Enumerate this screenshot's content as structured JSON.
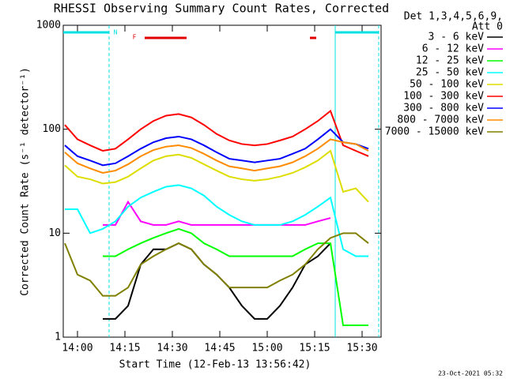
{
  "chart_data": {
    "type": "line",
    "title": "RHESSI Observing Summary Count Rates, Corrected",
    "xlabel": "Start Time (12-Feb-13 13:56:42)",
    "ylabel": "Corrected Count Rate (s⁻¹ detector⁻¹)",
    "legend_header": [
      "Det 1,3,4,5,6,9,",
      "Att 0"
    ],
    "footer": "23-Oct-2021 05:32",
    "log_y": true,
    "xlim": [
      -4.5,
      96
    ],
    "ylim": [
      1,
      1000
    ],
    "xticks": [
      {
        "value": 0,
        "label": "14:00"
      },
      {
        "value": 15,
        "label": "14:15"
      },
      {
        "value": 30,
        "label": "14:30"
      },
      {
        "value": 45,
        "label": "14:45"
      },
      {
        "value": 60,
        "label": "15:00"
      },
      {
        "value": 75,
        "label": "15:15"
      },
      {
        "value": 90,
        "label": "15:30"
      }
    ],
    "yticks": [
      1,
      10,
      100,
      1000
    ],
    "night_label": "N",
    "night_label_x": 12,
    "night_color": "#00e0e0",
    "night_bars": [
      [
        -4.5,
        10
      ],
      [
        81.5,
        95.25
      ]
    ],
    "flare_label": "F",
    "flare_label_x": 18,
    "flare_color": "#e00000",
    "flare_bars": [
      [
        21.25,
        34.5
      ],
      [
        73.5,
        75.5
      ]
    ],
    "x": [
      -4,
      0,
      4,
      8,
      12,
      16,
      20,
      24,
      28,
      32,
      36,
      40,
      44,
      48,
      52,
      56,
      60,
      64,
      68,
      72,
      76,
      80,
      84,
      88,
      92
    ],
    "series": [
      {
        "name": "3 - 6 keV",
        "color": "#000000",
        "values": [
          null,
          null,
          null,
          1.5,
          1.5,
          2,
          5,
          7,
          7,
          8,
          7,
          5,
          4,
          3,
          2,
          1.5,
          1.5,
          2,
          3,
          5,
          6,
          8,
          null,
          null,
          null
        ]
      },
      {
        "name": "6 - 12 keV",
        "color": "#ff00ff",
        "values": [
          null,
          null,
          null,
          12,
          12,
          20,
          13,
          12,
          12,
          13,
          12,
          12,
          12,
          12,
          12,
          12,
          12,
          12,
          12,
          12,
          13,
          14,
          null,
          null,
          null
        ]
      },
      {
        "name": "12 - 25 keV",
        "color": "#00ff00",
        "values": [
          null,
          null,
          null,
          6,
          6,
          7,
          8,
          9,
          10,
          11,
          10,
          8,
          7,
          6,
          6,
          6,
          6,
          6,
          6,
          7,
          8,
          8,
          1.3,
          1.3,
          1.3
        ]
      },
      {
        "name": "25 - 50 keV",
        "color": "#00ffff",
        "values": [
          17,
          17,
          10,
          11,
          13,
          18,
          22,
          25,
          28,
          29,
          27,
          23,
          18,
          15,
          13,
          12,
          12,
          12,
          13,
          15,
          18,
          22,
          7,
          6,
          6
        ]
      },
      {
        "name": "50 - 100 keV",
        "color": "#dddd00",
        "values": [
          45,
          35,
          33,
          30,
          31,
          35,
          42,
          50,
          55,
          57,
          53,
          46,
          40,
          35,
          33,
          32,
          33,
          35,
          38,
          43,
          50,
          62,
          25,
          27,
          20
        ]
      },
      {
        "name": "100 - 300 keV",
        "color": "#ff0000",
        "values": [
          110,
          80,
          70,
          62,
          65,
          80,
          100,
          120,
          135,
          140,
          130,
          110,
          90,
          78,
          72,
          70,
          72,
          78,
          85,
          100,
          120,
          150,
          70,
          62,
          55
        ]
      },
      {
        "name": "300 - 800 keV",
        "color": "#0000ff",
        "values": [
          70,
          55,
          50,
          45,
          47,
          55,
          65,
          75,
          82,
          85,
          80,
          70,
          60,
          52,
          50,
          48,
          50,
          52,
          58,
          65,
          80,
          100,
          75,
          72,
          65
        ]
      },
      {
        "name": "800 - 7000 keV",
        "color": "#ff8c00",
        "values": [
          60,
          47,
          42,
          38,
          40,
          46,
          55,
          63,
          68,
          70,
          66,
          58,
          50,
          44,
          42,
          40,
          42,
          44,
          48,
          55,
          65,
          80,
          75,
          72,
          62
        ]
      },
      {
        "name": "7000 - 15000 keV",
        "color": "#808000",
        "values": [
          8,
          4,
          3.5,
          2.5,
          2.5,
          3,
          5,
          6,
          7,
          8,
          7,
          5,
          4,
          3,
          3,
          3,
          3,
          3.5,
          4,
          5,
          7,
          9,
          10,
          10,
          8
        ]
      }
    ]
  }
}
